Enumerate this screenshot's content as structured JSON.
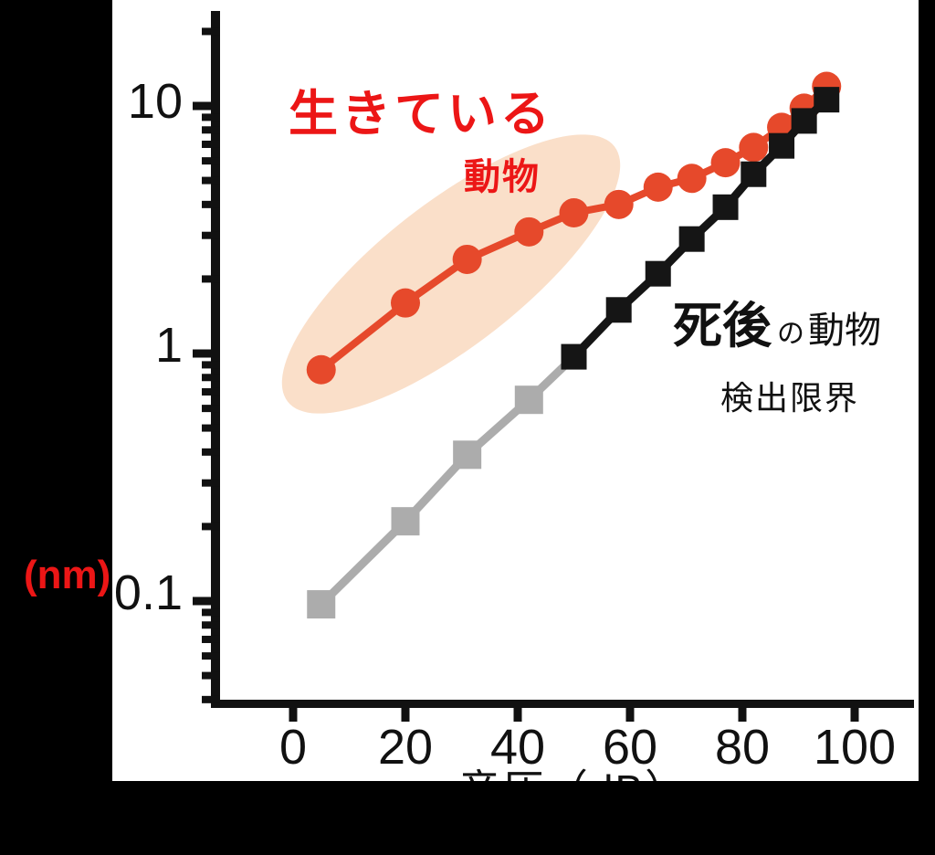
{
  "colors": {
    "background": "#000000",
    "plot_background": "#ffffff",
    "axis": "#111111",
    "red_text": "#ec1616",
    "living_series": "#e6492b",
    "postmortem_series": "#151515",
    "detection_series": "#acacac",
    "highlight_ellipse": "#fadfc9"
  },
  "y_axis": {
    "unit_label": "(nm)",
    "scale": "log",
    "tick_labels": [
      "10",
      "1",
      "0.1"
    ]
  },
  "x_axis": {
    "title": "音圧（dB）",
    "tick_labels": [
      "0",
      "20",
      "40",
      "60",
      "80",
      "100"
    ]
  },
  "annotations": {
    "living_line1": "生きている",
    "living_line2": "動物",
    "dead_big": "死後",
    "dead_particle": "の",
    "dead_rest": "動物",
    "detection_limit": "検出限界"
  },
  "chart_data": {
    "type": "line",
    "title": "",
    "xlabel": "音圧（dB）",
    "ylabel": "(nm)",
    "x_scale": "linear",
    "y_scale": "log",
    "xlim": [
      -15,
      111
    ],
    "ylim": [
      0.038,
      24
    ],
    "x_ticks": [
      0,
      20,
      40,
      60,
      80,
      100
    ],
    "y_major_ticks": [
      10,
      1,
      0.1
    ],
    "y_minor_ticks": [
      20,
      9,
      8,
      7,
      6,
      5,
      4,
      3,
      2,
      0.9,
      0.8,
      0.7,
      0.6,
      0.5,
      0.4,
      0.3,
      0.2,
      0.09,
      0.08,
      0.07,
      0.06,
      0.05,
      0.04
    ],
    "grid": false,
    "legend": "none (direct text annotations)",
    "series": [
      {
        "id": "living",
        "name": "生きている動物",
        "marker": "circle",
        "color": "#e6492b",
        "x": [
          5,
          20,
          31,
          42,
          50,
          58,
          65,
          71,
          77,
          82,
          87,
          91,
          95
        ],
        "y": [
          0.86,
          1.6,
          2.4,
          3.1,
          3.7,
          4.0,
          4.7,
          5.1,
          5.9,
          6.8,
          8.2,
          9.8,
          12
        ]
      },
      {
        "id": "postmortem",
        "name": "死後の動物",
        "marker": "square",
        "color": "#151515",
        "x": [
          50,
          58,
          65,
          71,
          77,
          82,
          87,
          91,
          95
        ],
        "y": [
          0.97,
          1.5,
          2.1,
          2.9,
          3.9,
          5.3,
          6.9,
          8.7,
          10.6
        ]
      },
      {
        "id": "detection-limit",
        "name": "検出限界",
        "marker": "square",
        "color": "#acacac",
        "x": [
          5,
          20,
          31,
          42
        ],
        "y": [
          0.097,
          0.21,
          0.39,
          0.65
        ],
        "line_to": {
          "x": 50,
          "y": 0.97
        }
      }
    ]
  }
}
